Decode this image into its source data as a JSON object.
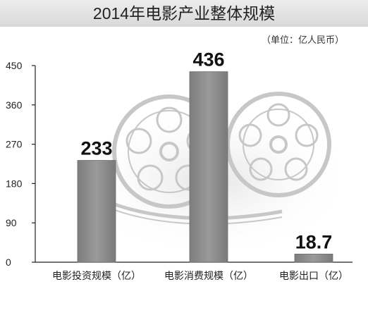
{
  "chart_data": {
    "type": "bar",
    "title": "2014年电影产业整体规模",
    "unit": "（单位：亿人民币）",
    "categories": [
      "电影投资规模（亿）",
      "电影消费规模（亿）",
      "电影出口（亿）"
    ],
    "values": [
      233,
      436,
      18.7
    ],
    "value_labels": [
      "233",
      "436",
      "18.7"
    ],
    "ylim": [
      0,
      450
    ],
    "yticks": [
      "0",
      "90",
      "180",
      "270",
      "360",
      "450"
    ],
    "grid": false,
    "bar_color": "#8a8a8a",
    "axis_color": "#222222"
  }
}
